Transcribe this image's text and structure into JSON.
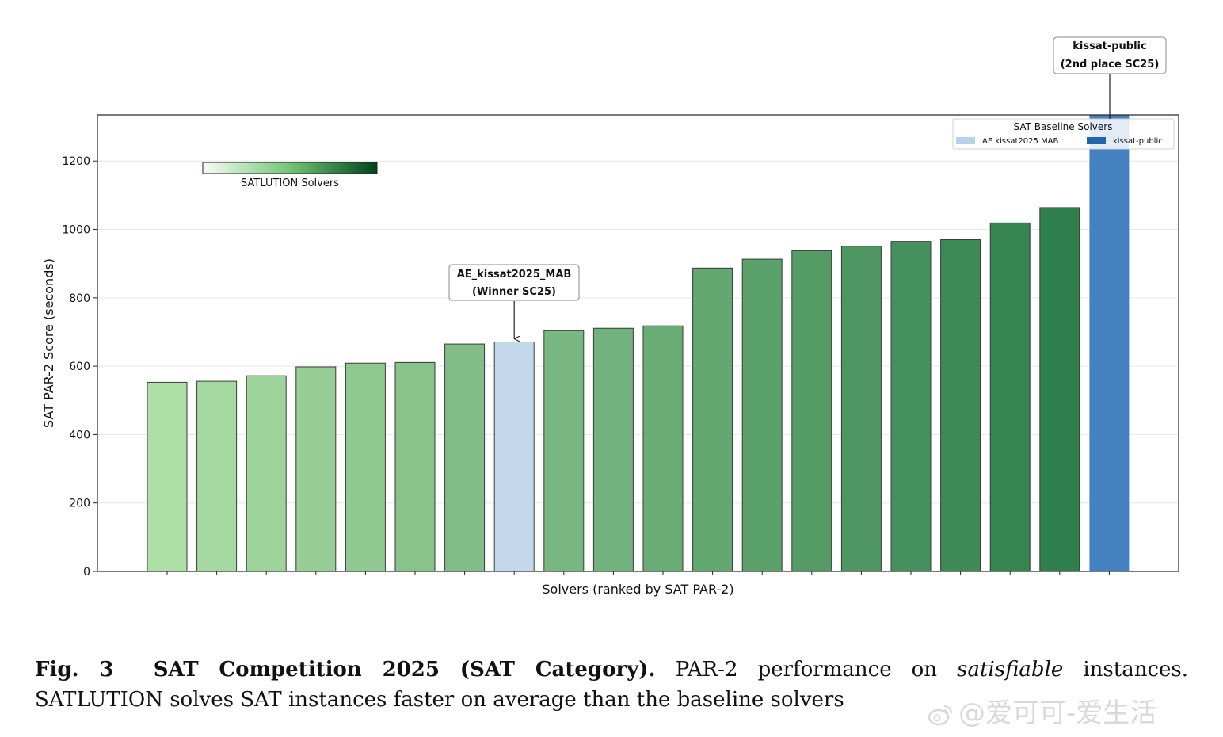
{
  "chart_data": {
    "type": "bar",
    "xlabel": "Solvers (ranked by SAT PAR-2)",
    "ylabel": "SAT PAR-2 Score (seconds)",
    "ylim": [
      0,
      1335
    ],
    "yticks": [
      0,
      200,
      400,
      600,
      800,
      1000,
      1200
    ],
    "grid": true,
    "values": [
      553,
      556,
      572,
      598,
      609,
      611,
      665,
      671,
      704,
      711,
      718,
      887,
      913,
      938,
      951,
      965,
      970,
      1019,
      1064,
      1340
    ],
    "bar_types": [
      "satlution",
      "satlution",
      "satlution",
      "satlution",
      "satlution",
      "satlution",
      "satlution",
      "baseline-mab",
      "satlution",
      "satlution",
      "satlution",
      "satlution",
      "satlution",
      "satlution",
      "satlution",
      "satlution",
      "satlution",
      "satlution",
      "satlution",
      "baseline-kissat"
    ],
    "colors": {
      "satlution_start": "#addfa6",
      "satlution_end": "#2f7f4c",
      "baseline_mab": "#c3d9eb",
      "baseline_kissat": "#4581c0",
      "bar_edge": "#3a3a3a"
    },
    "colorbar": {
      "label": "SATLUTION Solvers",
      "from": "#f7fcf5",
      "mid": "#74c476",
      "to": "#00441b"
    },
    "legend": {
      "title": "SAT Baseline Solvers",
      "placement": "top-right",
      "entries": [
        {
          "label": "AE kissat2025 MAB",
          "color": "#b4d3ea"
        },
        {
          "label": "kissat-public",
          "color": "#2166ac"
        }
      ]
    },
    "annotations": [
      {
        "bar_index": 7,
        "lines": [
          "AE_kissat2025_MAB",
          "(Winner SC25)"
        ]
      },
      {
        "bar_index": 19,
        "lines": [
          "kissat-public",
          "(2nd place SC25)"
        ]
      }
    ]
  },
  "caption": {
    "label": "Fig. 3",
    "title": "SAT Competition 2025 (SAT Category).",
    "text_before": "PAR-2 performance on",
    "emph": "satisfiable",
    "text_after": "instances.",
    "line2": "SATLUTION solves SAT instances faster on average than the baseline solvers"
  },
  "watermark": {
    "text": "@爱可可-爱生活"
  }
}
